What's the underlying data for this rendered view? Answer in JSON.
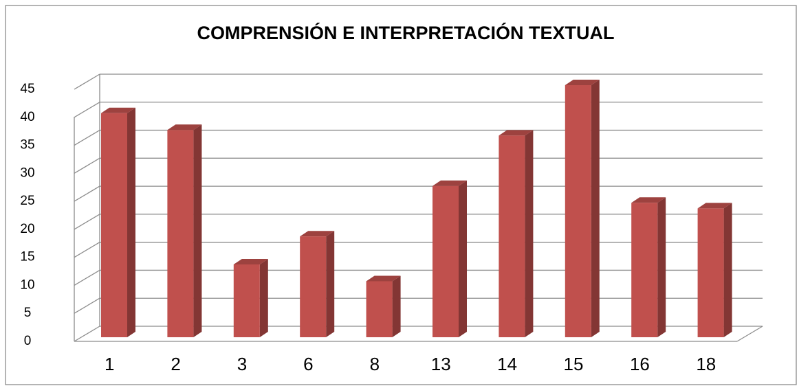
{
  "chart_data": {
    "type": "bar3d",
    "title": "COMPRENSIÓN E INTERPRETACIÓN TEXTUAL",
    "categories": [
      "1",
      "2",
      "3",
      "6",
      "8",
      "13",
      "14",
      "15",
      "16",
      "18"
    ],
    "values": [
      40,
      37,
      13,
      18,
      10,
      27,
      36,
      45,
      24,
      23
    ],
    "color": "#c0504d",
    "ylim": [
      0,
      45
    ],
    "yticks": [
      0,
      5,
      10,
      15,
      20,
      25,
      30,
      35,
      40,
      45
    ],
    "grid": true
  }
}
